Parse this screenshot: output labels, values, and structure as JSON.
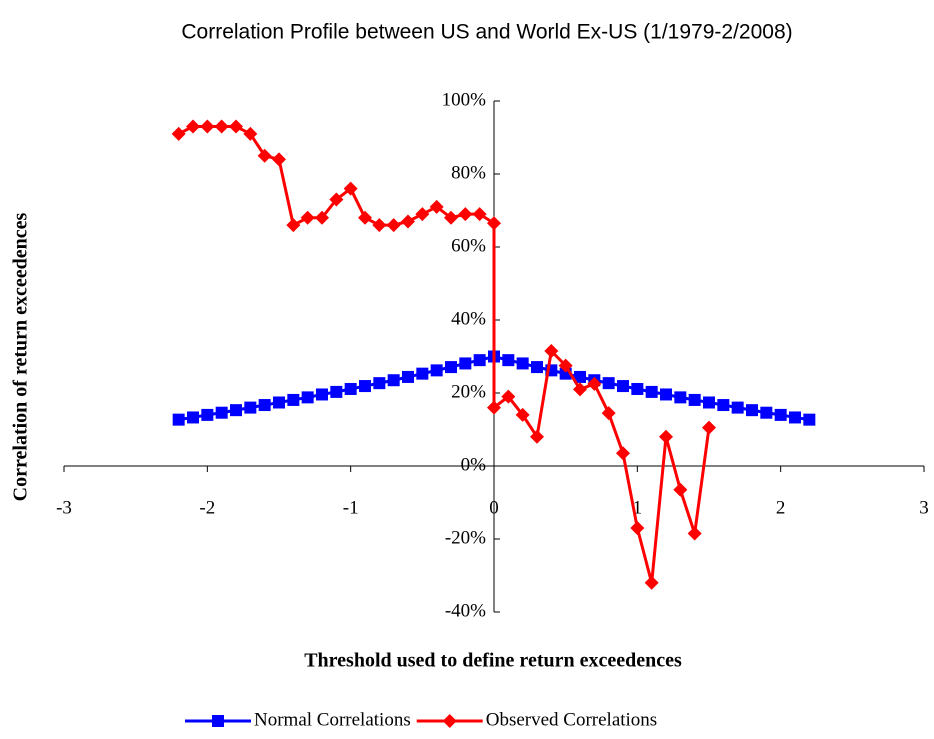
{
  "chart_data": {
    "type": "line",
    "title": "Correlation Profile between US and World Ex-US (1/1979-2/2008)",
    "x_label": "Threshold used to define return exceedences",
    "y_label": "Correlation of return exceedences",
    "xlim": [
      -3,
      3
    ],
    "xticks": [
      -3,
      -2,
      -1,
      0,
      1,
      2,
      3
    ],
    "ylim": [
      -40,
      100
    ],
    "yticks": [
      {
        "value": -40,
        "label": "-40%"
      },
      {
        "value": -20,
        "label": "-20%"
      },
      {
        "value": 0,
        "label": "0%"
      },
      {
        "value": 20,
        "label": "20%"
      },
      {
        "value": 40,
        "label": "40%"
      },
      {
        "value": 60,
        "label": "60%"
      },
      {
        "value": 80,
        "label": "80%"
      },
      {
        "value": 100,
        "label": "100%"
      }
    ],
    "legend": "bottom",
    "series": [
      {
        "name": "Normal Correlations",
        "color": "#0000ff",
        "marker": "square",
        "x": [
          -2.2,
          -2.1,
          -2.0,
          -1.9,
          -1.8,
          -1.7,
          -1.6,
          -1.5,
          -1.4,
          -1.3,
          -1.2,
          -1.1,
          -1.0,
          -0.9,
          -0.8,
          -0.7,
          -0.6,
          -0.5,
          -0.4,
          -0.3,
          -0.2,
          -0.1,
          0,
          0.1,
          0.2,
          0.3,
          0.4,
          0.5,
          0.6,
          0.7,
          0.8,
          0.9,
          1.0,
          1.1,
          1.2,
          1.3,
          1.4,
          1.5,
          1.6,
          1.7,
          1.8,
          1.9,
          2.0,
          2.1,
          2.2
        ],
        "values": [
          12.7,
          13.3,
          14.0,
          14.6,
          15.3,
          16.0,
          16.7,
          17.4,
          18.1,
          18.8,
          19.6,
          20.3,
          21.1,
          21.9,
          22.7,
          23.5,
          24.4,
          25.3,
          26.2,
          27.1,
          28.1,
          29.0,
          30.0,
          29.0,
          28.1,
          27.1,
          26.2,
          25.3,
          24.4,
          23.5,
          22.7,
          21.9,
          21.1,
          20.3,
          19.6,
          18.8,
          18.1,
          17.4,
          16.7,
          16.0,
          15.3,
          14.6,
          14.0,
          13.3,
          12.7
        ]
      },
      {
        "name": "Observed Correlations",
        "color": "#ff0000",
        "marker": "diamond",
        "x": [
          -2.2,
          -2.1,
          -2.0,
          -1.9,
          -1.8,
          -1.7,
          -1.6,
          -1.5,
          -1.4,
          -1.3,
          -1.2,
          -1.1,
          -1.0,
          -0.9,
          -0.8,
          -0.7,
          -0.6,
          -0.5,
          -0.4,
          -0.3,
          -0.2,
          -0.1,
          0,
          0,
          0.1,
          0.2,
          0.3,
          0.4,
          0.5,
          0.6,
          0.7,
          0.8,
          0.9,
          1.0,
          1.1,
          1.2,
          1.3,
          1.4,
          1.5
        ],
        "values": [
          91,
          93,
          93,
          93,
          93,
          91,
          85,
          84,
          66,
          68,
          68,
          73,
          76,
          68,
          66,
          66,
          67,
          69,
          71,
          68,
          69,
          69,
          66.5,
          16,
          19,
          14,
          8,
          31.5,
          27.5,
          21,
          22.5,
          14.5,
          3.5,
          -17,
          -32,
          8,
          -6.5,
          -18.5,
          10.5
        ]
      }
    ]
  }
}
